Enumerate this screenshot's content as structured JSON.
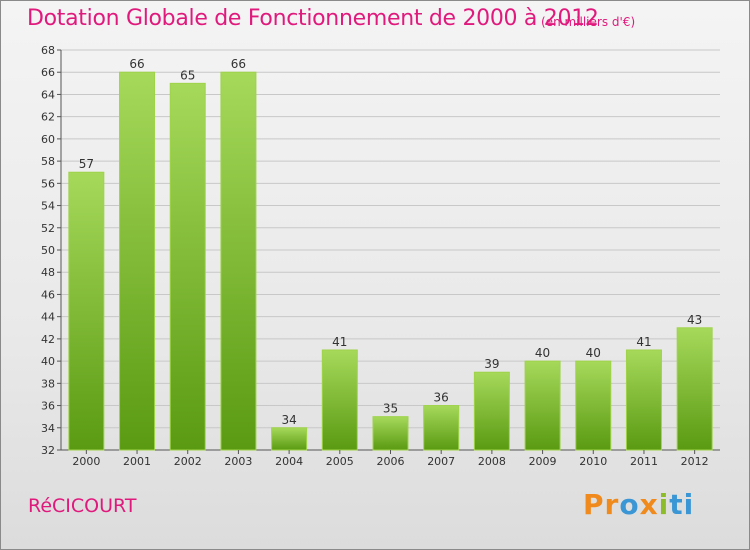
{
  "title": "Dotation Globale de Fonctionnement de 2000 à 2012",
  "unit": "(en milliers d'€)",
  "commune": "RéCICOURT",
  "logo": {
    "p1": "Pr",
    "p2": "o",
    "p3": "x",
    "p4": "i",
    "p5": "ti"
  },
  "colors": {
    "accent": "#e0197d",
    "bar": "#7cbf2c",
    "bar_light": "#a6d95a",
    "bar_dark": "#5a9a12"
  },
  "chart_data": {
    "type": "bar",
    "title": "Dotation Globale de Fonctionnement de 2000 à 2012",
    "subtitle": "(en milliers d'€)",
    "categories": [
      "2000",
      "2001",
      "2002",
      "2003",
      "2004",
      "2005",
      "2006",
      "2007",
      "2008",
      "2009",
      "2010",
      "2011",
      "2012"
    ],
    "values": [
      57,
      66,
      65,
      66,
      34,
      41,
      35,
      36,
      39,
      40,
      40,
      41,
      43
    ],
    "ylim": [
      32,
      68
    ],
    "yticks": [
      32,
      34,
      36,
      38,
      40,
      42,
      44,
      46,
      48,
      50,
      52,
      54,
      56,
      58,
      60,
      62,
      64,
      66,
      68
    ],
    "grid": true,
    "legend": "none"
  }
}
